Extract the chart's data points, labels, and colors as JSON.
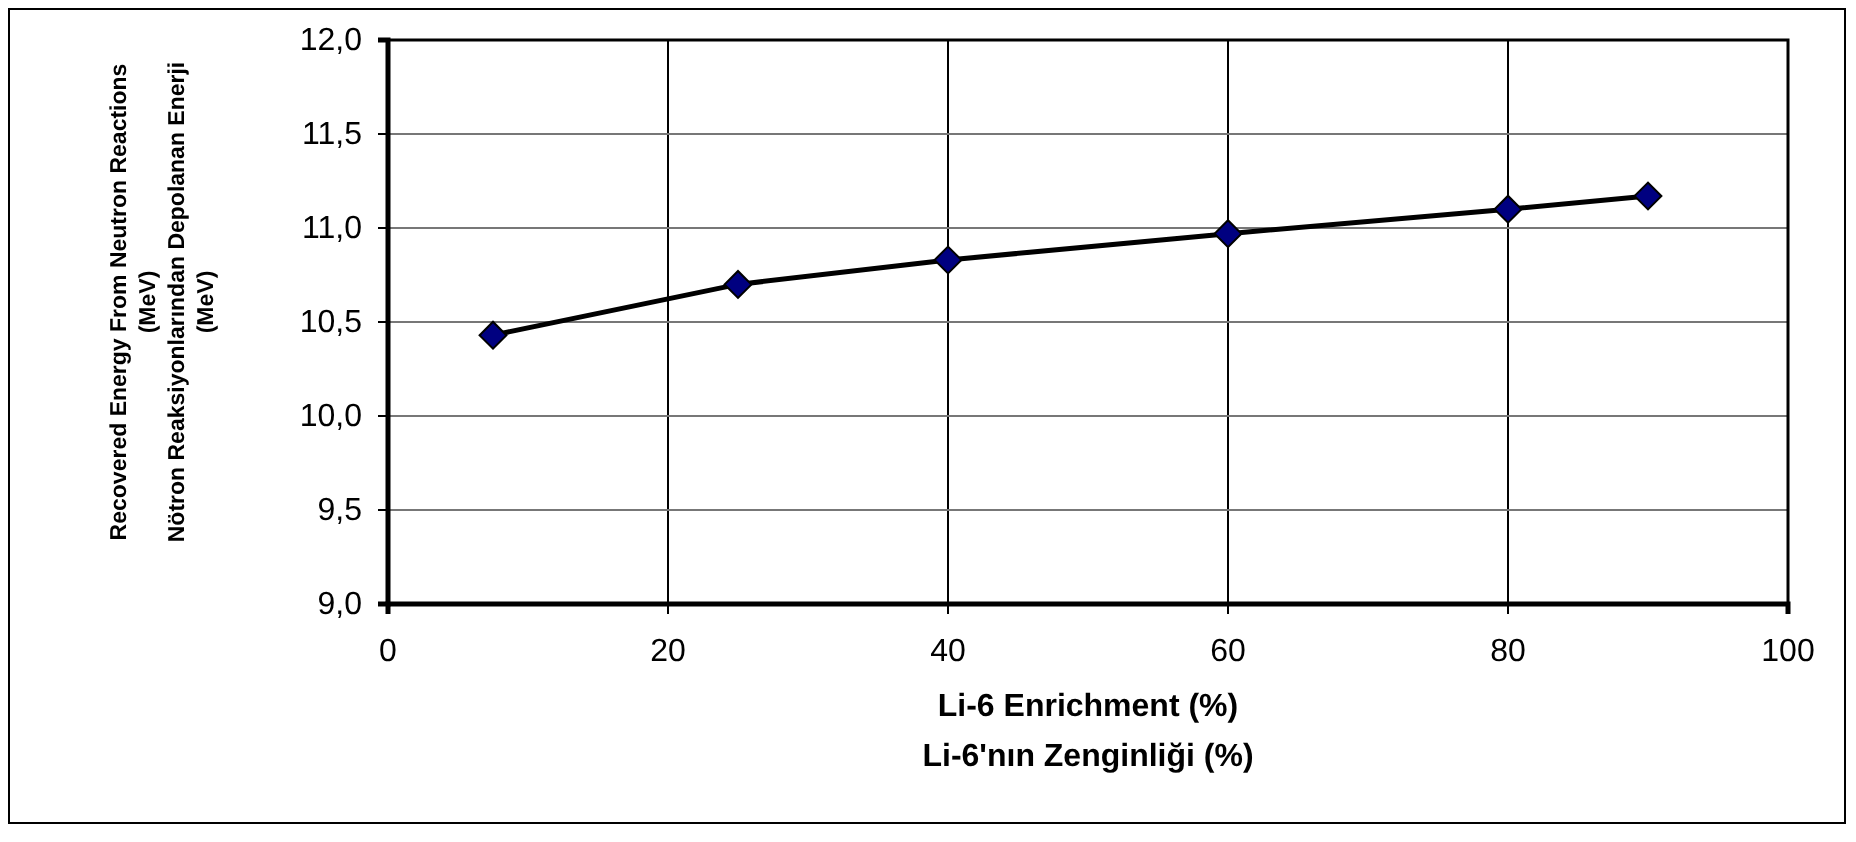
{
  "chart_data": {
    "type": "line",
    "xlabel": "Li-6 Enrichment (%)\nLi-6'nın Zenginliği (%)",
    "ylabel": "Recovered Energy From Neutron Reactions\n(MeV)\nNötron Reaksiyonlarından Depolanan Enerji\n(MeV)",
    "x": [
      7.5,
      25,
      40,
      60,
      80,
      90
    ],
    "series": [
      {
        "color": "#000080",
        "values": [
          10.43,
          10.7,
          10.83,
          10.97,
          11.1,
          11.17
        ]
      }
    ],
    "xlim": [
      0,
      100
    ],
    "xticks": [
      0,
      20,
      40,
      60,
      80,
      100
    ],
    "ylim": [
      9,
      12
    ],
    "yticks": [
      {
        "value": 9,
        "label": "9,0"
      },
      {
        "value": 9.5,
        "label": "9,5"
      },
      {
        "value": 10,
        "label": "10,0"
      },
      {
        "value": 10.5,
        "label": "10,5"
      },
      {
        "value": 11,
        "label": "11,0"
      },
      {
        "value": 11.5,
        "label": "11,5"
      },
      {
        "value": 12,
        "label": "12,0"
      }
    ],
    "grid": true,
    "marker": "diamond"
  }
}
